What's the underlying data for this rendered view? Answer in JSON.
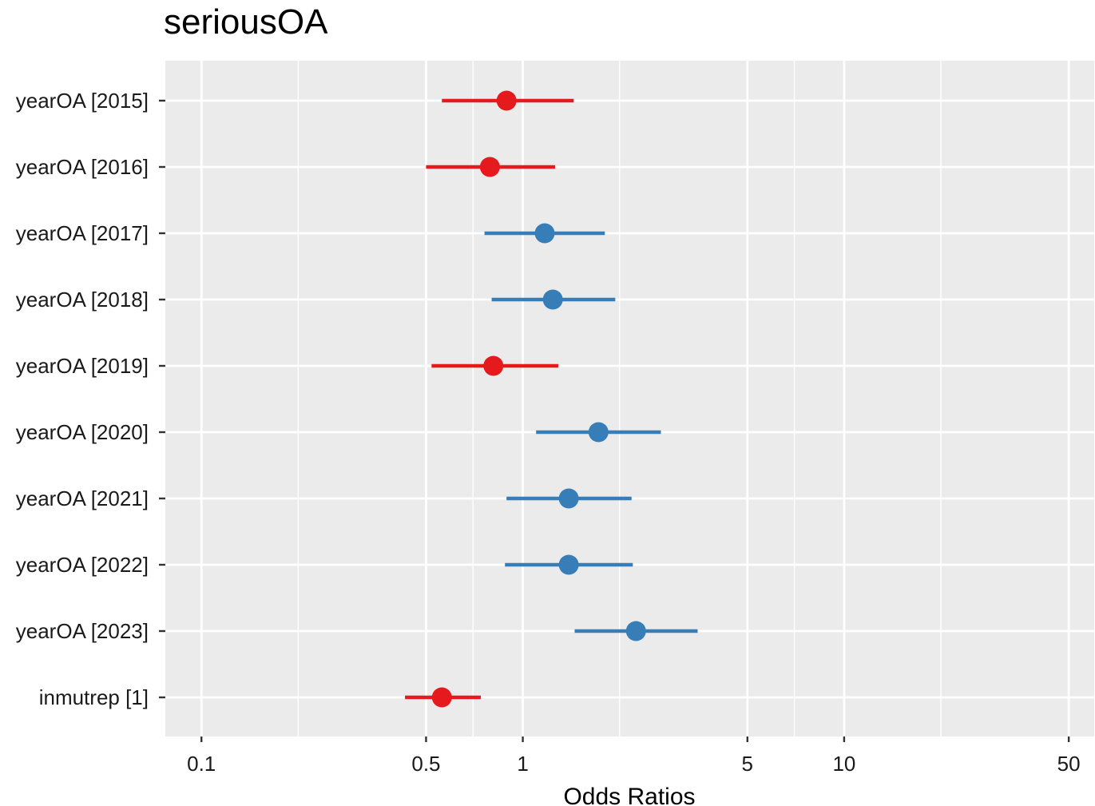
{
  "chart_data": {
    "type": "forest",
    "title": "seriousOA",
    "xlabel": "Odds Ratios",
    "ylabel": "",
    "x_scale": "log10",
    "xlim": [
      0.0772,
      60
    ],
    "x_ticks": [
      {
        "value": 0.1,
        "label": "0.1"
      },
      {
        "value": 0.5,
        "label": "0.5"
      },
      {
        "value": 1,
        "label": "1"
      },
      {
        "value": 5,
        "label": "5"
      },
      {
        "value": 10,
        "label": "10"
      },
      {
        "value": 50,
        "label": "50"
      }
    ],
    "minor_gridlines": [
      0.2,
      0.7,
      2,
      7,
      20
    ],
    "grid": true,
    "colors": {
      "above_1": "#377EB8",
      "below_1": "#E41A1C",
      "panel": "#EBEBEB",
      "grid": "#FFFFFF"
    },
    "terms": [
      {
        "label": "yearOA [2015]",
        "or": 0.89,
        "lo": 0.56,
        "hi": 1.44
      },
      {
        "label": "yearOA [2016]",
        "or": 0.79,
        "lo": 0.5,
        "hi": 1.26
      },
      {
        "label": "yearOA [2017]",
        "or": 1.17,
        "lo": 0.76,
        "hi": 1.8
      },
      {
        "label": "yearOA [2018]",
        "or": 1.24,
        "lo": 0.8,
        "hi": 1.94
      },
      {
        "label": "yearOA [2019]",
        "or": 0.81,
        "lo": 0.52,
        "hi": 1.29
      },
      {
        "label": "yearOA [2020]",
        "or": 1.72,
        "lo": 1.1,
        "hi": 2.69
      },
      {
        "label": "yearOA [2021]",
        "or": 1.39,
        "lo": 0.89,
        "hi": 2.18
      },
      {
        "label": "yearOA [2022]",
        "or": 1.39,
        "lo": 0.88,
        "hi": 2.2
      },
      {
        "label": "yearOA [2023]",
        "or": 2.25,
        "lo": 1.45,
        "hi": 3.5
      },
      {
        "label": "inmutrep [1]",
        "or": 0.56,
        "lo": 0.43,
        "hi": 0.74
      }
    ]
  }
}
